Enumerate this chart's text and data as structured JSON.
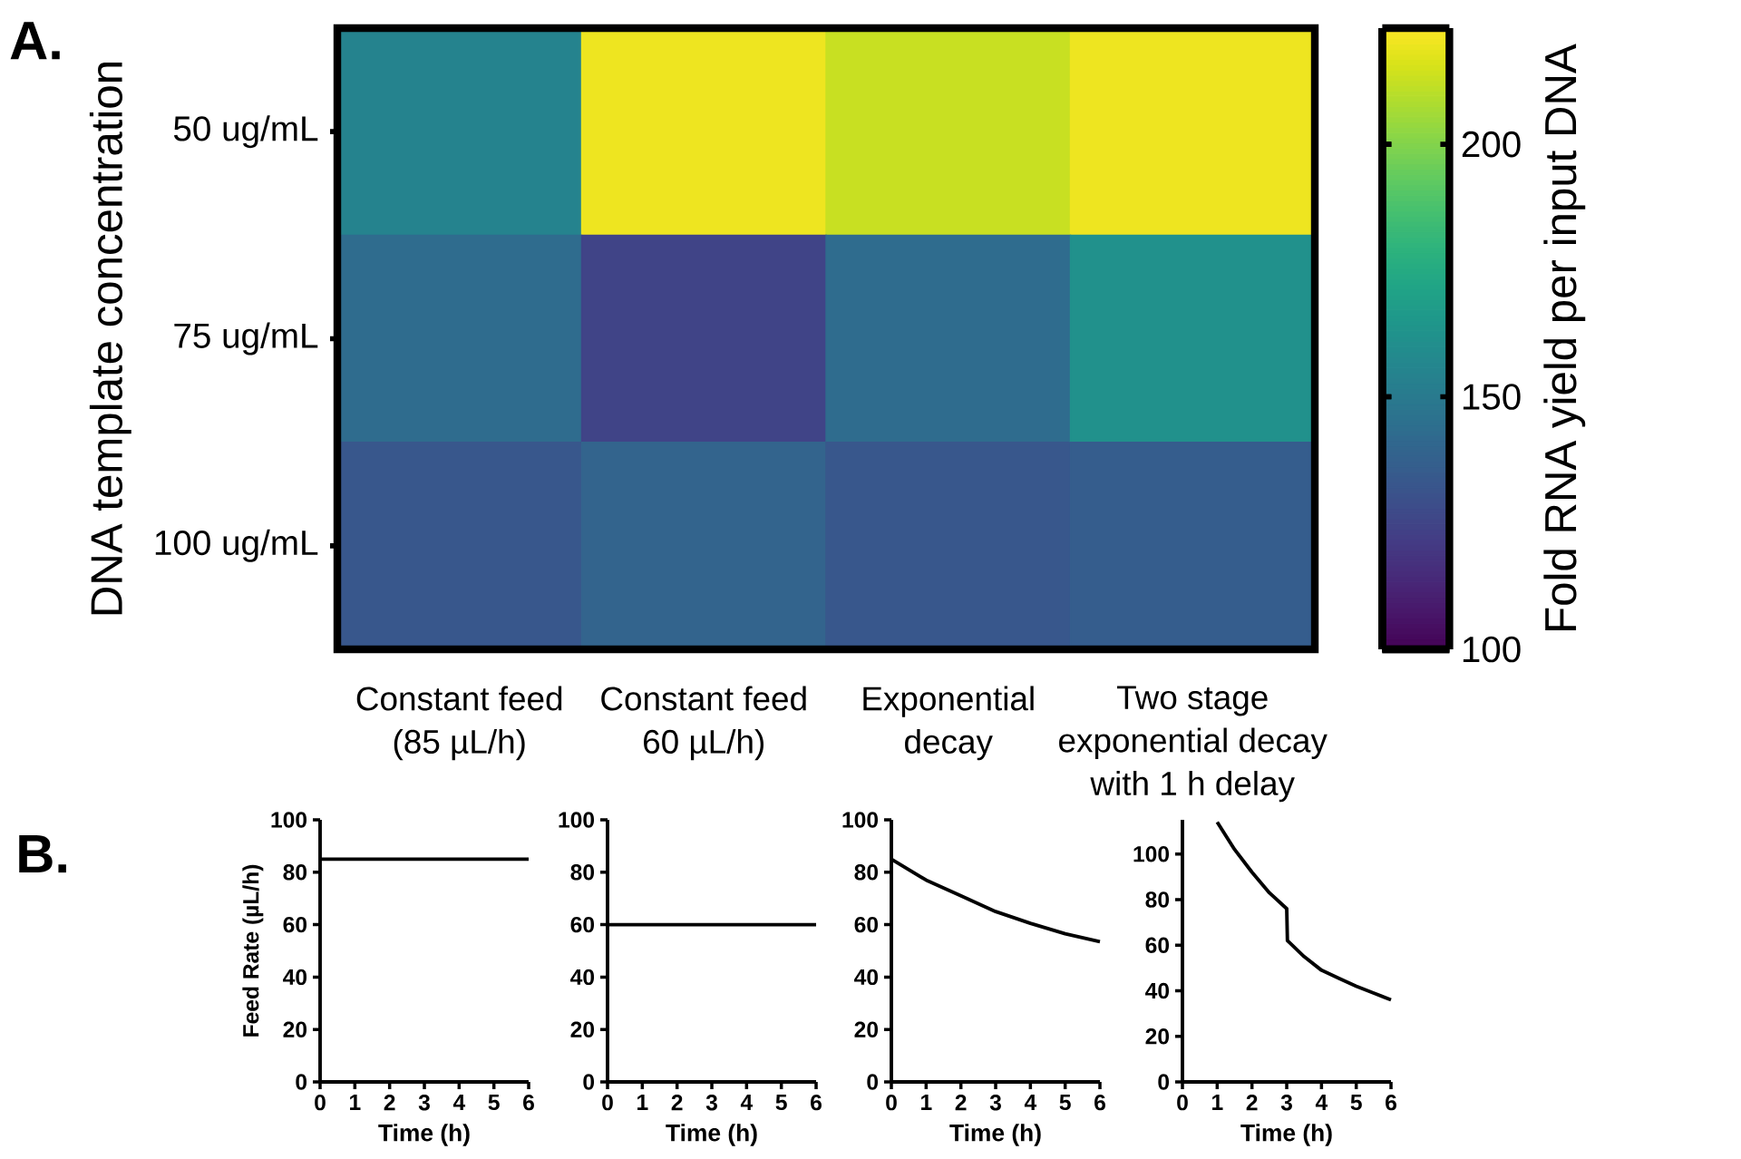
{
  "chart_data": [
    {
      "type": "heatmap",
      "annotations": [
        "A."
      ],
      "ylabel": "DNA template concentration",
      "clabel": "Fold RNA yield per input DNA",
      "categories": [
        "Constant feed (85 µL/h)",
        "Constant feed 60 µL/h)",
        "Exponential decay",
        "Two stage exponential decay with 1 h delay"
      ],
      "y_categories": [
        "50 ug/mL",
        "75 ug/mL",
        "100 ug/mL"
      ],
      "cells": [
        [
          155,
          220,
          213,
          220
        ],
        [
          143,
          125,
          143,
          162
        ],
        [
          133,
          139,
          133,
          136
        ]
      ],
      "clim": [
        100,
        223
      ],
      "cticks": [
        100,
        150,
        200
      ]
    },
    {
      "type": "line",
      "annotations": [
        "B."
      ],
      "xlabel": "Time (h)",
      "ylabel": "Feed Rate (µL/h)",
      "xlim": [
        0,
        6
      ],
      "ylim": [
        0,
        100
      ],
      "xticks": [
        0,
        1,
        2,
        3,
        4,
        5,
        6
      ],
      "yticks": [
        0,
        20,
        40,
        60,
        80,
        100
      ],
      "series": [
        {
          "color": "#000000",
          "x": [
            0,
            6
          ],
          "values": [
            85,
            85
          ]
        }
      ]
    },
    {
      "type": "line",
      "xlabel": "Time (h)",
      "xlim": [
        0,
        6
      ],
      "ylim": [
        0,
        100
      ],
      "xticks": [
        0,
        1,
        2,
        3,
        4,
        5,
        6
      ],
      "yticks": [
        0,
        20,
        40,
        60,
        80,
        100
      ],
      "series": [
        {
          "color": "#000000",
          "x": [
            0,
            6
          ],
          "values": [
            60,
            60
          ]
        }
      ]
    },
    {
      "type": "line",
      "xlabel": "Time (h)",
      "xlim": [
        0,
        6
      ],
      "ylim": [
        0,
        100
      ],
      "xticks": [
        0,
        1,
        2,
        3,
        4,
        5,
        6
      ],
      "yticks": [
        0,
        20,
        40,
        60,
        80,
        100
      ],
      "series": [
        {
          "color": "#000000",
          "x": [
            0,
            1,
            2,
            3,
            4,
            5,
            6
          ],
          "values": [
            85,
            77,
            71,
            65,
            60.5,
            56.5,
            53.5
          ]
        }
      ]
    },
    {
      "type": "line",
      "xlabel": "Time (h)",
      "xlim": [
        0,
        6
      ],
      "ylim": [
        0,
        115
      ],
      "xticks": [
        0,
        1,
        2,
        3,
        4,
        5,
        6
      ],
      "yticks": [
        0,
        20,
        40,
        60,
        80,
        100
      ],
      "series": [
        {
          "color": "#000000",
          "x": [
            1,
            1.5,
            2,
            2.5,
            3,
            3.02,
            3.5,
            4,
            4.5,
            5,
            5.5,
            6
          ],
          "values": [
            114,
            102,
            92,
            83,
            76,
            62,
            55,
            49,
            45.5,
            42,
            39,
            36
          ]
        }
      ]
    }
  ]
}
